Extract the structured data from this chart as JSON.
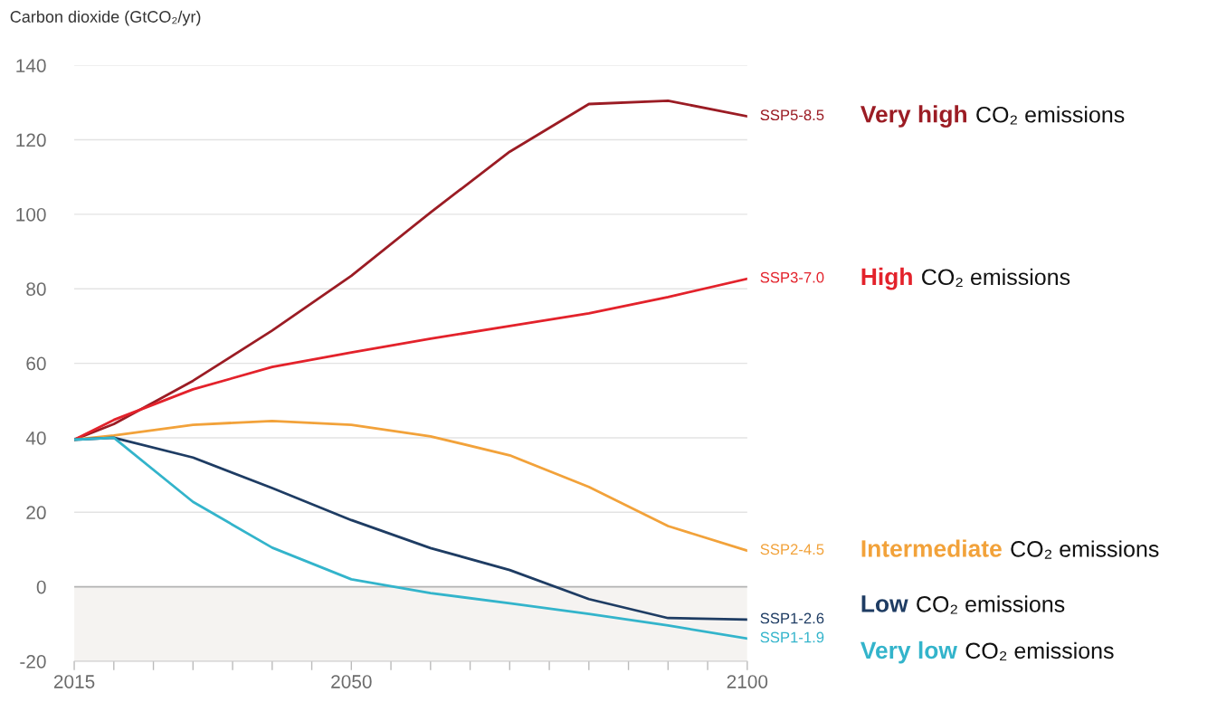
{
  "chart_data": {
    "type": "line",
    "ylabel": "Carbon dioxide (GtCO₂/yr)",
    "x": [
      2015,
      2020,
      2030,
      2040,
      2050,
      2060,
      2070,
      2080,
      2090,
      2100
    ],
    "series": [
      {
        "name": "SSP5-8.5",
        "color": "#9b1c24",
        "values": [
          39.5,
          43.7,
          55.3,
          68.8,
          83.5,
          100.5,
          116.8,
          129.6,
          130.5,
          126.3
        ]
      },
      {
        "name": "SSP3-7.0",
        "color": "#e3222b",
        "values": [
          39.5,
          44.8,
          53.0,
          59.0,
          62.9,
          66.6,
          70.0,
          73.4,
          77.8,
          82.7
        ]
      },
      {
        "name": "SSP2-4.5",
        "color": "#f2a23a",
        "values": [
          39.5,
          40.6,
          43.5,
          44.5,
          43.5,
          40.4,
          35.3,
          26.8,
          16.3,
          9.7
        ]
      },
      {
        "name": "SSP1-2.6",
        "color": "#1e3c63",
        "values": [
          39.5,
          40.0,
          34.7,
          26.5,
          17.9,
          10.4,
          4.5,
          -3.3,
          -8.4,
          -8.8
        ]
      },
      {
        "name": "SSP1-1.9",
        "color": "#33b4cb",
        "values": [
          39.5,
          40.0,
          22.8,
          10.5,
          2.0,
          -1.7,
          -4.4,
          -7.3,
          -10.4,
          -13.9
        ]
      }
    ],
    "xlim": [
      2015,
      2100
    ],
    "xticks": [
      2015,
      {
        "value": 2020,
        "label": null
      },
      {
        "value": 2025,
        "label": null
      },
      {
        "value": 2030,
        "label": null
      },
      {
        "value": 2035,
        "label": null
      },
      {
        "value": 2040,
        "label": null
      },
      {
        "value": 2045,
        "label": null
      },
      2050,
      {
        "value": 2055,
        "label": null
      },
      {
        "value": 2060,
        "label": null
      },
      {
        "value": 2065,
        "label": null
      },
      {
        "value": 2070,
        "label": null
      },
      {
        "value": 2075,
        "label": null
      },
      {
        "value": 2080,
        "label": null
      },
      {
        "value": 2085,
        "label": null
      },
      {
        "value": 2090,
        "label": null
      },
      {
        "value": 2095,
        "label": null
      },
      2100
    ],
    "ylim": [
      -20,
      140
    ],
    "yticks": [
      -20,
      0,
      20,
      40,
      60,
      80,
      100,
      120,
      140
    ],
    "grid": "y",
    "legend": false,
    "marker": "none",
    "line_style": "solid",
    "ref_lines": [
      {
        "axis": "y",
        "value": 0,
        "color": "#b4b4b4"
      }
    ],
    "bands": [
      {
        "axis": "y",
        "from": -20,
        "to": 0,
        "color": "#f5f3f1"
      }
    ],
    "annotations": [
      "Very high",
      "CO₂ emissions",
      "High",
      "CO₂ emissions",
      "Intermediate",
      "CO₂ emissions",
      "Low",
      "CO₂ emissions",
      "Very low",
      "CO₂ emissions"
    ]
  }
}
